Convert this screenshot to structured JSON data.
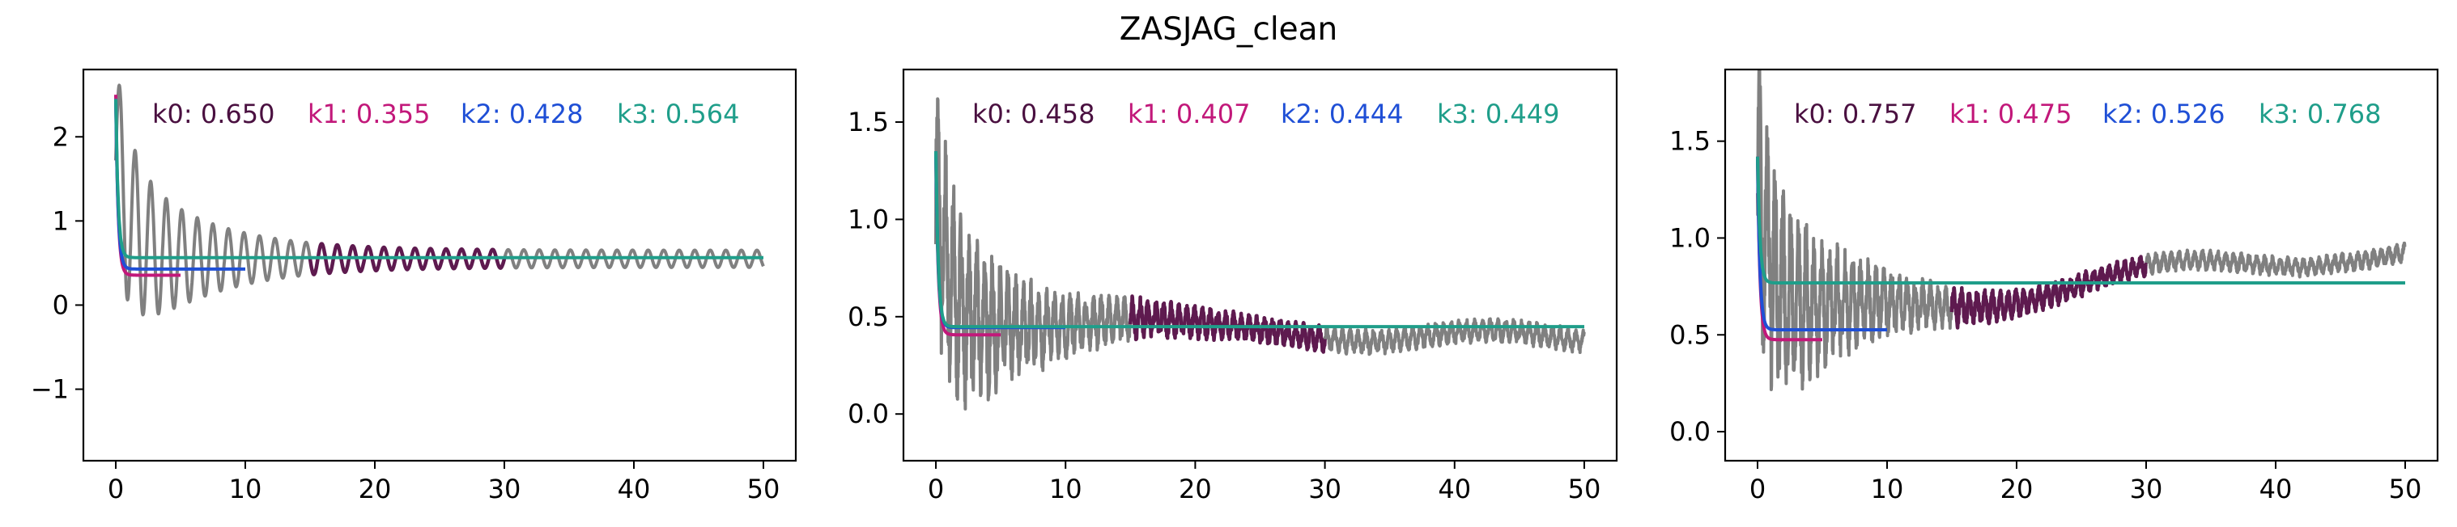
{
  "figure": {
    "title": "ZASJAG_clean"
  },
  "colors": {
    "signal": "#808080",
    "highlight": "#5e1a4f",
    "k0": "#4a1040",
    "k1": "#c2187a",
    "k2": "#1f4fd6",
    "k3": "#1f9e8a"
  },
  "chart_data": [
    {
      "type": "line",
      "xlim": [
        -2.5,
        52.5
      ],
      "ylim": [
        -1.85,
        2.8
      ],
      "xticks": [
        0,
        10,
        20,
        30,
        40,
        50
      ],
      "yticks": [
        -1,
        0,
        1,
        2
      ],
      "grid": false,
      "signal": {
        "kind": "oscillating",
        "x_range": [
          0,
          50
        ],
        "start": 2.5,
        "end": 0.55,
        "amplitude0": 1.4,
        "amplitude_end": 0.12,
        "period": 1.2,
        "highlight_range": [
          15,
          30
        ]
      },
      "annotations": [
        {
          "label": "k0: 0.650",
          "value": 0.65,
          "color_key": "k0"
        },
        {
          "label": "k1: 0.355",
          "value": 0.355,
          "color_key": "k1"
        },
        {
          "label": "k2: 0.428",
          "value": 0.428,
          "color_key": "k2"
        },
        {
          "label": "k3: 0.564",
          "value": 0.564,
          "color_key": "k3"
        }
      ],
      "fits": [
        {
          "name": "k1",
          "x_end": 5,
          "start": 2.5,
          "plateau": 0.355
        },
        {
          "name": "k2",
          "x_end": 10,
          "start": 2.45,
          "plateau": 0.428
        },
        {
          "name": "k3",
          "x_end": 50,
          "start": 2.45,
          "plateau": 0.564
        }
      ]
    },
    {
      "type": "line",
      "xlim": [
        -2.5,
        52.5
      ],
      "ylim": [
        -0.24,
        1.77
      ],
      "xticks": [
        0,
        10,
        20,
        30,
        40,
        50
      ],
      "yticks": [
        0.0,
        0.5,
        1.0,
        1.5
      ],
      "ytick_labels": [
        "0.0",
        "0.5",
        "1.0",
        "1.5"
      ],
      "grid": false,
      "signal": {
        "kind": "noisy",
        "x_range": [
          0,
          50
        ],
        "start": 1.6,
        "end": 0.4,
        "amplitude0": 0.55,
        "amplitude_end": 0.05,
        "period": 0.6,
        "highlight_range": [
          15,
          30
        ]
      },
      "annotations": [
        {
          "label": "k0: 0.458",
          "value": 0.458,
          "color_key": "k0"
        },
        {
          "label": "k1: 0.407",
          "value": 0.407,
          "color_key": "k1"
        },
        {
          "label": "k2: 0.444",
          "value": 0.444,
          "color_key": "k2"
        },
        {
          "label": "k3: 0.449",
          "value": 0.449,
          "color_key": "k3"
        }
      ],
      "fits": [
        {
          "name": "k1",
          "x_end": 5,
          "start": 1.35,
          "plateau": 0.407
        },
        {
          "name": "k2",
          "x_end": 10,
          "start": 1.35,
          "plateau": 0.444
        },
        {
          "name": "k3",
          "x_end": 50,
          "start": 1.35,
          "plateau": 0.449
        }
      ]
    },
    {
      "type": "line",
      "xlim": [
        -2.5,
        52.5
      ],
      "ylim": [
        -0.15,
        1.87
      ],
      "xticks": [
        0,
        10,
        20,
        30,
        40,
        50
      ],
      "yticks": [
        0.0,
        0.5,
        1.0,
        1.5
      ],
      "ytick_labels": [
        "0.0",
        "0.5",
        "1.0",
        "1.5"
      ],
      "grid": false,
      "signal": {
        "kind": "drift",
        "x_range": [
          0,
          50
        ],
        "start": 1.75,
        "end": 0.93,
        "amplitude0": 0.6,
        "amplitude_end": 0.04,
        "period": 0.6,
        "highlight_range": [
          15,
          30
        ]
      },
      "annotations": [
        {
          "label": "k0: 0.757",
          "value": 0.757,
          "color_key": "k0"
        },
        {
          "label": "k1: 0.475",
          "value": 0.475,
          "color_key": "k1"
        },
        {
          "label": "k2: 0.526",
          "value": 0.526,
          "color_key": "k2"
        },
        {
          "label": "k3: 0.768",
          "value": 0.768,
          "color_key": "k3"
        }
      ],
      "fits": [
        {
          "name": "k1",
          "x_end": 5,
          "start": 1.42,
          "plateau": 0.475
        },
        {
          "name": "k2",
          "x_end": 10,
          "start": 1.42,
          "plateau": 0.526
        },
        {
          "name": "k3",
          "x_end": 50,
          "start": 1.42,
          "plateau": 0.768
        }
      ]
    }
  ]
}
